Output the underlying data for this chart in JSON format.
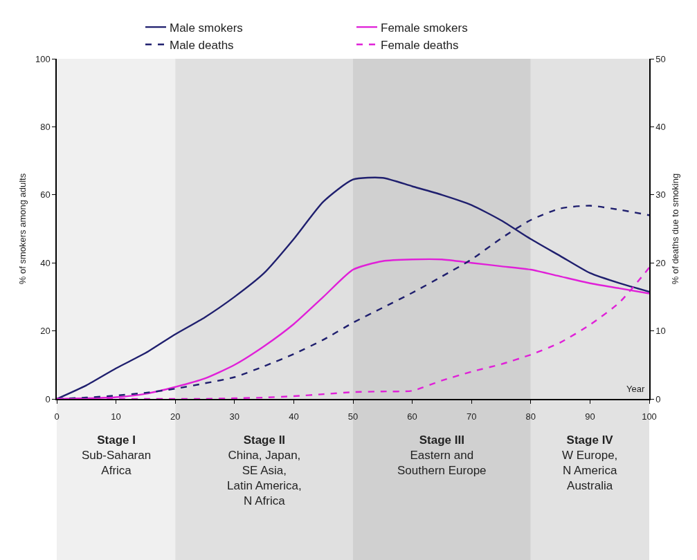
{
  "chart_data": {
    "type": "line",
    "xlabel": "Year",
    "ylabel": "% of smokers among adults",
    "y2label": "% of deaths due to smoking",
    "xlim": [
      0,
      100
    ],
    "xticks": [
      0,
      10,
      20,
      30,
      40,
      50,
      60,
      70,
      80,
      90,
      100
    ],
    "ylim": [
      0,
      100
    ],
    "yticks": [
      0,
      20,
      40,
      60,
      80,
      100
    ],
    "y2lim": [
      0,
      50
    ],
    "y2ticks": [
      0,
      10,
      20,
      30,
      40,
      50
    ],
    "grid": false,
    "legend": "top",
    "line_style": "solid",
    "marker": "none",
    "x": [
      0,
      5,
      10,
      15,
      20,
      25,
      30,
      35,
      40,
      45,
      50,
      55,
      60,
      65,
      70,
      75,
      80,
      85,
      90,
      95,
      100
    ],
    "series": [
      {
        "name": "Male smokers",
        "color": "#1f1f6e",
        "values": [
          0,
          4,
          9,
          13.5,
          19,
          24,
          30,
          37,
          47,
          58,
          64.5,
          65,
          62.5,
          60,
          57,
          52.5,
          47,
          42,
          37,
          34,
          31.5
        ]
      },
      {
        "name": "Female smokers",
        "color": "#e020d8",
        "values": [
          0,
          0.2,
          0.5,
          1.5,
          3.5,
          6,
          10,
          15.5,
          22,
          30,
          38,
          40.5,
          41,
          41,
          40,
          39,
          38,
          36,
          34,
          32.5,
          31
        ]
      },
      {
        "name": "Male deaths",
        "color": "#1f1f6e",
        "axis": "y2",
        "line_style": "dashed",
        "values": [
          0,
          0.2,
          0.5,
          0.9,
          1.5,
          2.3,
          3.2,
          4.8,
          6.6,
          8.7,
          11.2,
          13.4,
          15.6,
          18,
          20.5,
          23.6,
          26.3,
          28,
          28.4,
          27.8,
          27
        ]
      },
      {
        "name": "Female deaths",
        "color": "#e020d8",
        "axis": "y2",
        "line_style": "dashed",
        "values": [
          0,
          0,
          0,
          0,
          0,
          0,
          0.1,
          0.2,
          0.4,
          0.7,
          1,
          1.1,
          1.2,
          2.7,
          4,
          5.1,
          6.5,
          8.3,
          10.9,
          14.2,
          19.3
        ]
      }
    ],
    "bands": [
      {
        "axis": "x",
        "from": 0,
        "to": 20,
        "color": "#f0f0f0",
        "label": "Stage I\nSub-Saharan\nAfrica"
      },
      {
        "axis": "x",
        "from": 20,
        "to": 50,
        "color": "#e0e0e0",
        "label": "Stage II\nChina, Japan,\nSE Asia,\nLatin America,\nN Africa"
      },
      {
        "axis": "x",
        "from": 50,
        "to": 80,
        "color": "#d0d0d0",
        "label": "Stage III\nEastern and\nSouthern Europe"
      },
      {
        "axis": "x",
        "from": 80,
        "to": 100,
        "color": "#e2e2e2",
        "label": "Stage IV\nW Europe,\nN America\nAustralia"
      }
    ]
  }
}
